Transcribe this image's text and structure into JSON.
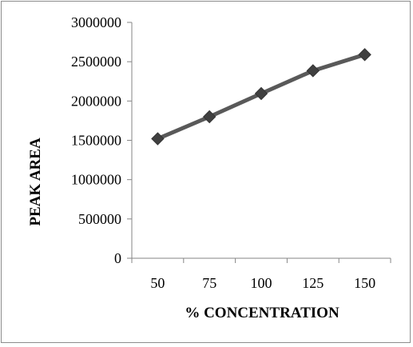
{
  "chart_data": {
    "type": "line",
    "title": "",
    "xlabel": "% CONCENTRATION",
    "ylabel": "PEAK AREA",
    "categories": [
      "50",
      "75",
      "100",
      "125",
      "150"
    ],
    "series": [
      {
        "values": [
          1520000,
          1800000,
          2095000,
          2385000,
          2590000
        ]
      }
    ],
    "ylim": [
      0,
      3000000
    ],
    "yticks": [
      0,
      500000,
      1000000,
      1500000,
      2000000,
      2500000,
      3000000
    ],
    "ytick_labels": [
      "0",
      "500000",
      "1000000",
      "1500000",
      "2000000",
      "2500000",
      "3000000"
    ],
    "grid": false,
    "legend": "none",
    "colors": {
      "line": "#595959",
      "marker": "#404040",
      "axis": "#868686"
    }
  }
}
